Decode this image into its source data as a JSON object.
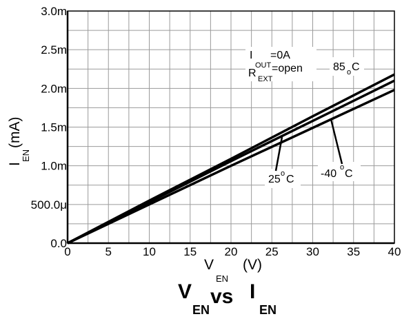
{
  "chart_data": {
    "type": "line",
    "title": {
      "main_v": "V",
      "main_v_sub": "EN",
      "main_vs": "vs",
      "main_i": "I",
      "main_i_sub": "EN"
    },
    "xlabel": {
      "text": "V",
      "sub": "EN",
      "unit": "(V)"
    },
    "ylabel": {
      "text": "I",
      "sub": "EN",
      "unit": "(mA)"
    },
    "xlim": [
      0,
      40
    ],
    "ylim": [
      0,
      3.0
    ],
    "grid": true,
    "x_ticks": [
      0,
      5,
      10,
      15,
      20,
      25,
      30,
      35,
      40
    ],
    "x_tick_labels": [
      "0",
      "5",
      "10",
      "15",
      "20",
      "25",
      "30",
      "35",
      "40"
    ],
    "y_ticks": [
      0.0,
      0.5,
      1.0,
      1.5,
      2.0,
      2.5,
      3.0
    ],
    "y_tick_labels": [
      "0.0",
      "500.0μ",
      "1.0m",
      "1.5m",
      "2.0m",
      "2.5m",
      "3.0m"
    ],
    "series": [
      {
        "name": "85°C",
        "x": [
          0,
          10,
          20,
          30,
          40
        ],
        "values": [
          0,
          0.55,
          1.09,
          1.64,
          2.18
        ]
      },
      {
        "name": "25°C",
        "x": [
          0,
          10,
          20,
          30,
          40
        ],
        "values": [
          0,
          0.53,
          1.06,
          1.58,
          2.1
        ]
      },
      {
        "name": "-40°C",
        "x": [
          0,
          10,
          20,
          30,
          40
        ],
        "values": [
          0,
          0.5,
          1.0,
          1.49,
          1.98
        ]
      }
    ],
    "annotations": {
      "cond1_main": "I",
      "cond1_sub": "OUT",
      "cond1_tail": "=0A",
      "cond2_main": "R",
      "cond2_sub": "EXT",
      "cond2_tail": "=open",
      "label_85_num": "85",
      "label_85_deg": "o",
      "label_85_unit": "C",
      "label_25_num": "25",
      "label_25_deg": "o",
      "label_25_unit": "C",
      "label_m40_num": "-40",
      "label_m40_deg": "o",
      "label_m40_unit": "C"
    }
  }
}
